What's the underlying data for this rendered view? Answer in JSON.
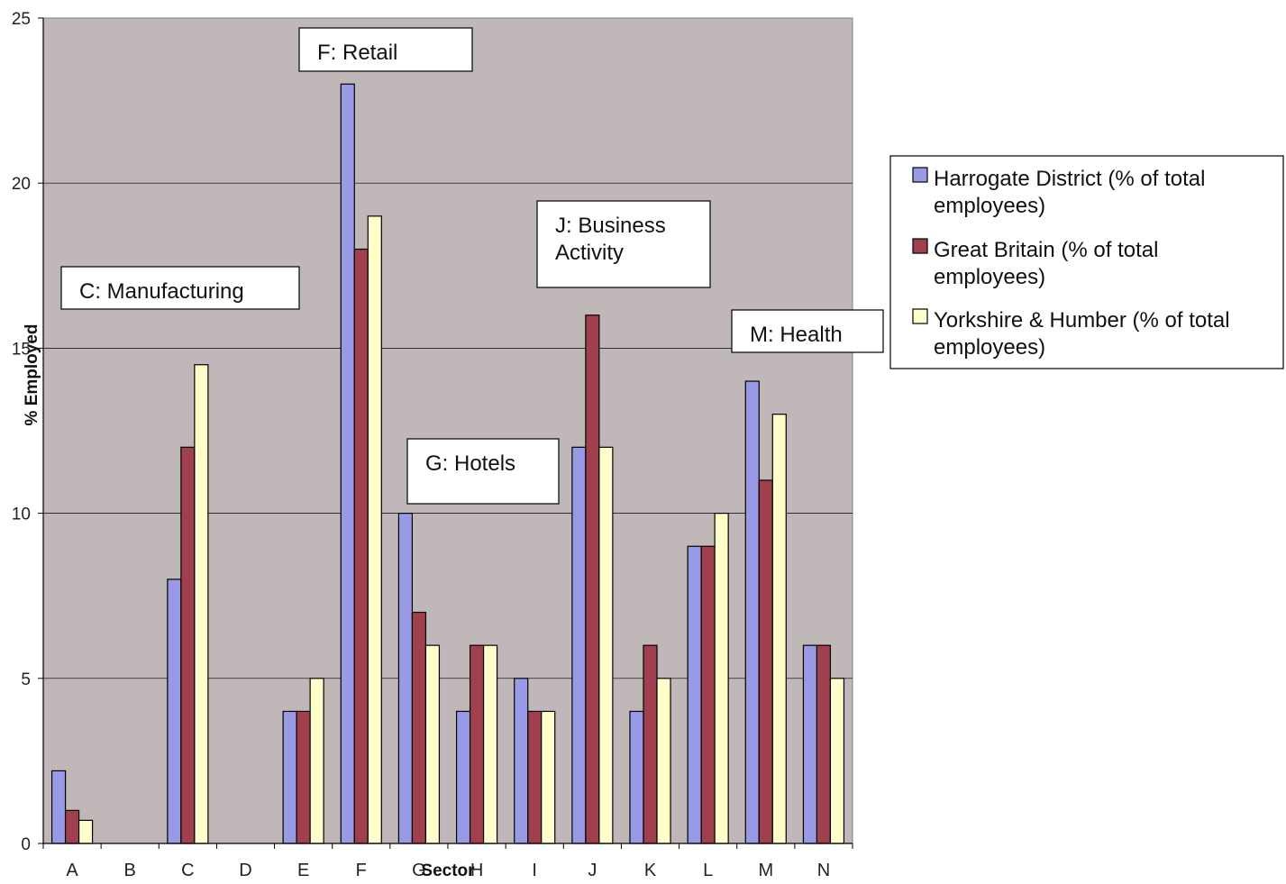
{
  "chart_data": {
    "type": "bar",
    "title": "",
    "xlabel": "Sector",
    "ylabel": "% Employed",
    "ylim": [
      0,
      25
    ],
    "yticks": [
      0,
      5,
      10,
      15,
      20,
      25
    ],
    "grid": true,
    "legend_position": "right",
    "plot_background": "#C0B8B8",
    "categories": [
      "A",
      "B",
      "C",
      "D",
      "E",
      "F",
      "G",
      "H",
      "I",
      "J",
      "K",
      "L",
      "M",
      "N"
    ],
    "series": [
      {
        "name": "Harrogate District  (% of total employees)",
        "color": "#9999E6",
        "values": [
          2.2,
          0,
          8,
          0,
          4,
          23,
          10,
          4,
          5,
          12,
          4,
          9,
          14,
          6
        ]
      },
      {
        "name": "Great Britain (% of total employees)",
        "color": "#A0404E",
        "values": [
          1,
          0,
          12,
          0,
          4,
          18,
          7,
          6,
          4,
          16,
          6,
          9,
          11,
          6
        ]
      },
      {
        "name": "Yorkshire & Humber (% of total employees)",
        "color": "#FFFFCC",
        "values": [
          0.7,
          0,
          14.5,
          0,
          5,
          19,
          6,
          6,
          4,
          12,
          5,
          10,
          13,
          5
        ]
      }
    ],
    "legend_lines": [
      [
        "Harrogate District  (% of total",
        "employees)"
      ],
      [
        "Great Britain (% of total",
        "employees)"
      ],
      [
        "Yorkshire & Humber (% of total",
        "employees)"
      ]
    ],
    "annotations": [
      {
        "lines": [
          "C: Manufacturing"
        ]
      },
      {
        "lines": [
          "F: Retail"
        ]
      },
      {
        "lines": [
          "G: Hotels"
        ]
      },
      {
        "lines": [
          "J: Business",
          "Activity"
        ]
      },
      {
        "lines": [
          "M: Health"
        ]
      }
    ]
  }
}
